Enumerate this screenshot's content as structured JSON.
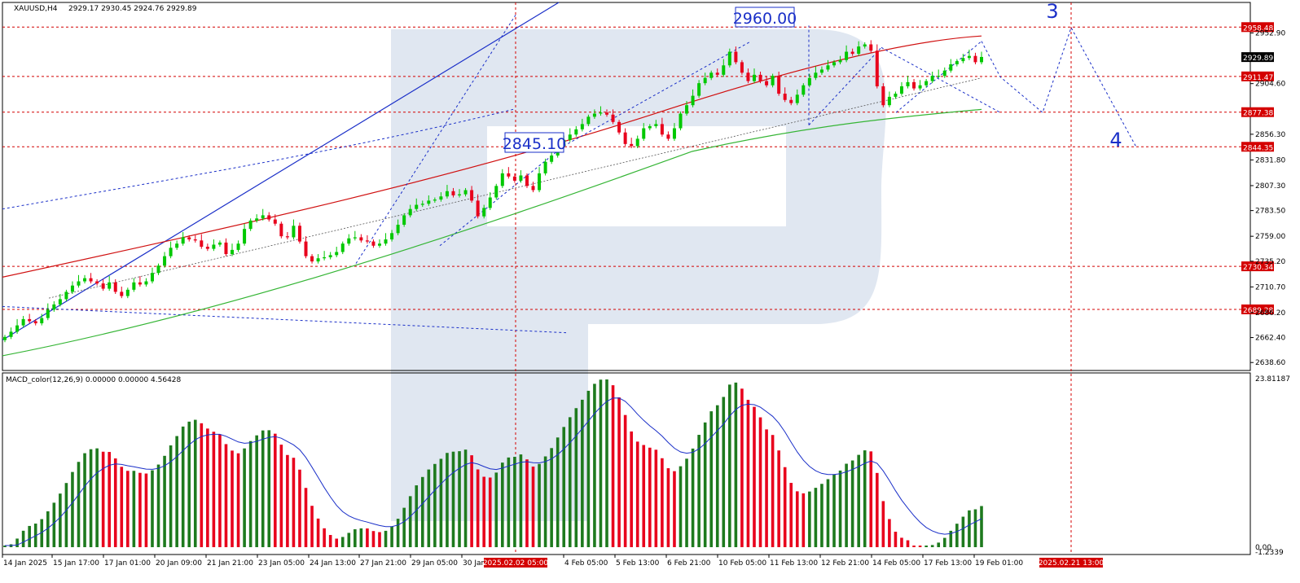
{
  "header": {
    "symbol_info": "XAUUSD,H4",
    "ohlc": "2929.17 2930.45 2924.76 2929.89"
  },
  "macd_header": "MACD_color(12,26,9) 0.00000 0.00000 4.56428",
  "price_axis": {
    "labels": [
      "2952.90",
      "2904.60",
      "2856.30",
      "2831.80",
      "2807.30",
      "2783.50",
      "2759.00",
      "2735.20",
      "2710.70",
      "2686.20",
      "2662.40",
      "2638.60"
    ],
    "current_price": "2929.89"
  },
  "macd_axis": {
    "labels": [
      "23.81187",
      "0.00",
      "-1.2339"
    ]
  },
  "time_axis": {
    "labels": [
      "14 Jan 2025",
      "15 Jan 17:00",
      "17 Jan 01:00",
      "20 Jan 09:00",
      "21 Jan 21:00",
      "23 Jan 05:00",
      "24 Jan 13:00",
      "27 Jan 21:00",
      "29 Jan 05:00",
      "30 Jan",
      "4 Feb 05:00",
      "5 Feb 13:00",
      "6 Feb 21:00",
      "10 Feb 05:00",
      "11 Feb 13:00",
      "12 Feb 21:00",
      "14 Feb 05:00",
      "17 Feb 13:00",
      "19 Feb 01:00"
    ],
    "highlight_1": "2025.02.02 05:00",
    "highlight_2": "2025.02.21 13:00"
  },
  "annotations": {
    "box_high": "2960.00",
    "box_low": "2845.10",
    "wave_3": "3",
    "wave_4": "4"
  },
  "colors": {
    "bull": "#00c800",
    "bear": "#e8001c",
    "macd_up": "#1e7a1e",
    "macd_down": "#e8001c",
    "level_line": "#d40000",
    "ma_red": "#d01010",
    "ma_green": "#35b535",
    "wave_blue": "#1a2fc8",
    "watermark": "#c7d3e6"
  },
  "chart_data": {
    "type": "candlestick",
    "symbol": "XAUUSD",
    "timeframe": "H4",
    "horizontal_levels": [
      2958.48,
      2911.47,
      2877.38,
      2844.35,
      2730.34,
      2689.28
    ],
    "horizontal_level_labels": [
      "2958.48",
      "2911.47",
      "2877.38",
      "2844.35",
      "2730.34",
      "2689.28"
    ],
    "ylim": [
      2631,
      2982
    ],
    "forecast_wave": [
      [
        2929.89,
        "19 Feb 01:00"
      ],
      [
        2877.38,
        "after 19 Feb"
      ],
      [
        2958.48,
        "2025.02.21 13:00"
      ],
      [
        2844.35,
        "after 2025.02.21 13:00"
      ]
    ],
    "candles_close": [
      2663,
      2668,
      2674,
      2680,
      2678,
      2676,
      2681,
      2689,
      2694,
      2699,
      2706,
      2712,
      2716,
      2719,
      2716,
      2714,
      2709,
      2715,
      2706,
      2702,
      2708,
      2715,
      2713,
      2716,
      2724,
      2731,
      2740,
      2748,
      2752,
      2758,
      2756,
      2755,
      2749,
      2747,
      2751,
      2753,
      2742,
      2746,
      2752,
      2766,
      2774,
      2776,
      2779,
      2775,
      2771,
      2759,
      2758,
      2769,
      2754,
      2740,
      2735,
      2738,
      2739,
      2741,
      2744,
      2752,
      2757,
      2758,
      2755,
      2754,
      2750,
      2752,
      2756,
      2762,
      2770,
      2779,
      2785,
      2789,
      2790,
      2793,
      2794,
      2797,
      2802,
      2798,
      2799,
      2803,
      2793,
      2778,
      2786,
      2796,
      2807,
      2819,
      2816,
      2812,
      2817,
      2807,
      2803,
      2819,
      2830,
      2836,
      2845,
      2851,
      2856,
      2861,
      2866,
      2873,
      2876,
      2877,
      2875,
      2868,
      2858,
      2847,
      2845,
      2852,
      2862,
      2864,
      2866,
      2856,
      2852,
      2862,
      2876,
      2884,
      2893,
      2905,
      2910,
      2915,
      2913,
      2922,
      2935,
      2925,
      2915,
      2907,
      2913,
      2907,
      2903,
      2912,
      2895,
      2889,
      2886,
      2894,
      2903,
      2910,
      2915,
      2918,
      2922,
      2925,
      2927,
      2935,
      2933,
      2940,
      2942,
      2936,
      2902,
      2884,
      2892,
      2895,
      2902,
      2906,
      2900,
      2903,
      2907,
      2912,
      2912,
      2917,
      2923,
      2926,
      2929,
      2931,
      2925,
      2930
    ]
  }
}
